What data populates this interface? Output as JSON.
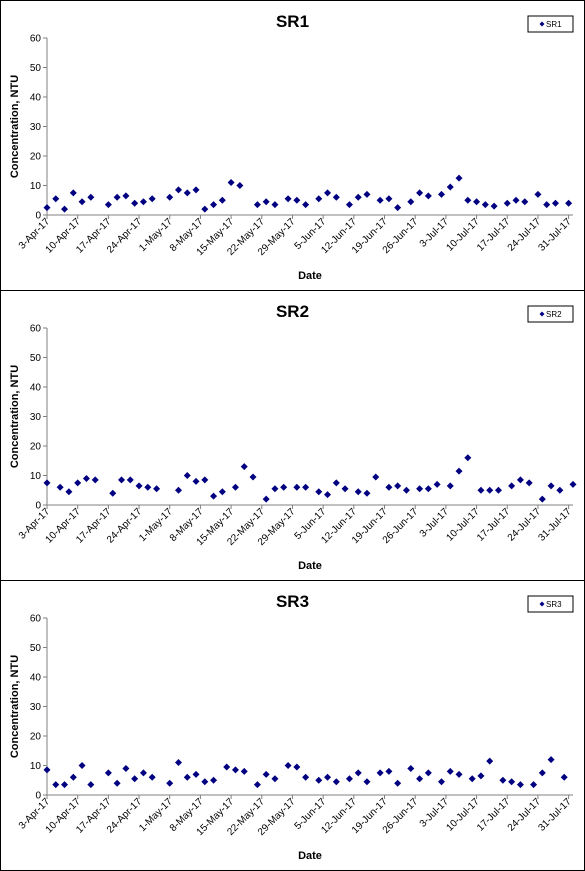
{
  "colors": {
    "marker": "#000080",
    "axis": "#808080"
  },
  "chart_data": [
    {
      "type": "scatter",
      "title": "SR1",
      "xlabel": "Date",
      "ylabel": "Concentration, NTU",
      "ylim": [
        0,
        60
      ],
      "yticks": [
        "0",
        "10",
        "20",
        "30",
        "40",
        "50",
        "60"
      ],
      "xlim": [
        "2017-04-03",
        "2017-08-01"
      ],
      "xticks": [
        "3-Apr-17",
        "10-Apr-17",
        "17-Apr-17",
        "24-Apr-17",
        "1-May-17",
        "8-May-17",
        "15-May-17",
        "22-May-17",
        "29-May-17",
        "5-Jun-17",
        "12-Jun-17",
        "19-Jun-17",
        "26-Jun-17",
        "3-Jul-17",
        "10-Jul-17",
        "17-Jul-17",
        "24-Jul-17",
        "31-Jul-17"
      ],
      "legend": "top-right",
      "grid": false,
      "series": [
        {
          "name": "SR1",
          "x": [
            "2017-04-03",
            "2017-04-05",
            "2017-04-07",
            "2017-04-09",
            "2017-04-11",
            "2017-04-13",
            "2017-04-17",
            "2017-04-19",
            "2017-04-21",
            "2017-04-23",
            "2017-04-25",
            "2017-04-27",
            "2017-05-01",
            "2017-05-03",
            "2017-05-05",
            "2017-05-07",
            "2017-05-09",
            "2017-05-11",
            "2017-05-13",
            "2017-05-15",
            "2017-05-17",
            "2017-05-21",
            "2017-05-23",
            "2017-05-25",
            "2017-05-28",
            "2017-05-30",
            "2017-06-01",
            "2017-06-04",
            "2017-06-06",
            "2017-06-08",
            "2017-06-11",
            "2017-06-13",
            "2017-06-15",
            "2017-06-18",
            "2017-06-20",
            "2017-06-22",
            "2017-06-25",
            "2017-06-27",
            "2017-06-29",
            "2017-07-02",
            "2017-07-04",
            "2017-07-06",
            "2017-07-08",
            "2017-07-10",
            "2017-07-12",
            "2017-07-14",
            "2017-07-17",
            "2017-07-19",
            "2017-07-21",
            "2017-07-24",
            "2017-07-26",
            "2017-07-28",
            "2017-07-31"
          ],
          "y": [
            2.5,
            5.5,
            2,
            7.5,
            4.5,
            6,
            3.5,
            6,
            6.5,
            4,
            4.5,
            5.5,
            6,
            8.5,
            7.5,
            8.5,
            2,
            3.5,
            5,
            11,
            10,
            3.5,
            4.5,
            3.5,
            5.5,
            5,
            3.5,
            5.5,
            7.5,
            6,
            3.5,
            6,
            7,
            5,
            5.5,
            2.5,
            4.5,
            7.5,
            6.5,
            7,
            9.5,
            12.5,
            5,
            4.5,
            3.5,
            3,
            4,
            5,
            4.5,
            7,
            3.5,
            4,
            4
          ]
        }
      ]
    },
    {
      "type": "scatter",
      "title": "SR2",
      "xlabel": "Date",
      "ylabel": "Concentration, NTU",
      "ylim": [
        0,
        60
      ],
      "yticks": [
        "0",
        "10",
        "20",
        "30",
        "40",
        "50",
        "60"
      ],
      "xlim": [
        "2017-04-03",
        "2017-08-01"
      ],
      "xticks": [
        "3-Apr-17",
        "10-Apr-17",
        "17-Apr-17",
        "24-Apr-17",
        "1-May-17",
        "8-May-17",
        "15-May-17",
        "22-May-17",
        "29-May-17",
        "5-Jun-17",
        "12-Jun-17",
        "19-Jun-17",
        "26-Jun-17",
        "3-Jul-17",
        "10-Jul-17",
        "17-Jul-17",
        "24-Jul-17",
        "31-Jul-17"
      ],
      "legend": "top-right",
      "grid": false,
      "series": [
        {
          "name": "SR2",
          "x": [
            "2017-04-03",
            "2017-04-06",
            "2017-04-08",
            "2017-04-10",
            "2017-04-12",
            "2017-04-14",
            "2017-04-18",
            "2017-04-20",
            "2017-04-22",
            "2017-04-24",
            "2017-04-26",
            "2017-04-28",
            "2017-05-03",
            "2017-05-05",
            "2017-05-07",
            "2017-05-09",
            "2017-05-11",
            "2017-05-13",
            "2017-05-16",
            "2017-05-18",
            "2017-05-20",
            "2017-05-23",
            "2017-05-25",
            "2017-05-27",
            "2017-05-30",
            "2017-06-01",
            "2017-06-04",
            "2017-06-06",
            "2017-06-08",
            "2017-06-10",
            "2017-06-13",
            "2017-06-15",
            "2017-06-17",
            "2017-06-20",
            "2017-06-22",
            "2017-06-24",
            "2017-06-27",
            "2017-06-29",
            "2017-07-01",
            "2017-07-04",
            "2017-07-06",
            "2017-07-08",
            "2017-07-11",
            "2017-07-13",
            "2017-07-15",
            "2017-07-18",
            "2017-07-20",
            "2017-07-22",
            "2017-07-25",
            "2017-07-27",
            "2017-07-29",
            "2017-08-01"
          ],
          "y": [
            7.5,
            6,
            4.5,
            7.5,
            9,
            8.5,
            4,
            8.5,
            8.5,
            6.5,
            6,
            5.5,
            5,
            10,
            8,
            8.5,
            3,
            4.5,
            6,
            13,
            9.5,
            2,
            5.5,
            6,
            6,
            6,
            4.5,
            3.5,
            7.5,
            5.5,
            4.5,
            4,
            9.5,
            6,
            6.5,
            5,
            5.5,
            5.5,
            7,
            6.5,
            11.5,
            16,
            5,
            5,
            5,
            6.5,
            8.5,
            7.5,
            2,
            6.5,
            5,
            7
          ]
        }
      ]
    },
    {
      "type": "scatter",
      "title": "SR3",
      "xlabel": "Date",
      "ylabel": "Concentration, NTU",
      "ylim": [
        0,
        60
      ],
      "yticks": [
        "0",
        "10",
        "20",
        "30",
        "40",
        "50",
        "60"
      ],
      "xlim": [
        "2017-04-03",
        "2017-08-01"
      ],
      "xticks": [
        "3-Apr-17",
        "10-Apr-17",
        "17-Apr-17",
        "24-Apr-17",
        "1-May-17",
        "8-May-17",
        "15-May-17",
        "22-May-17",
        "29-May-17",
        "5-Jun-17",
        "12-Jun-17",
        "19-Jun-17",
        "26-Jun-17",
        "3-Jul-17",
        "10-Jul-17",
        "17-Jul-17",
        "24-Jul-17",
        "31-Jul-17"
      ],
      "legend": "top-right",
      "grid": false,
      "series": [
        {
          "name": "SR3",
          "x": [
            "2017-04-03",
            "2017-04-05",
            "2017-04-07",
            "2017-04-09",
            "2017-04-11",
            "2017-04-13",
            "2017-04-17",
            "2017-04-19",
            "2017-04-21",
            "2017-04-23",
            "2017-04-25",
            "2017-04-27",
            "2017-05-01",
            "2017-05-03",
            "2017-05-05",
            "2017-05-07",
            "2017-05-09",
            "2017-05-11",
            "2017-05-14",
            "2017-05-16",
            "2017-05-18",
            "2017-05-21",
            "2017-05-23",
            "2017-05-25",
            "2017-05-28",
            "2017-05-30",
            "2017-06-01",
            "2017-06-04",
            "2017-06-06",
            "2017-06-08",
            "2017-06-11",
            "2017-06-13",
            "2017-06-15",
            "2017-06-18",
            "2017-06-20",
            "2017-06-22",
            "2017-06-25",
            "2017-06-27",
            "2017-06-29",
            "2017-07-02",
            "2017-07-04",
            "2017-07-06",
            "2017-07-09",
            "2017-07-11",
            "2017-07-13",
            "2017-07-16",
            "2017-07-18",
            "2017-07-20",
            "2017-07-23",
            "2017-07-25",
            "2017-07-27",
            "2017-07-30"
          ],
          "y": [
            8.5,
            3.5,
            3.5,
            6,
            10,
            3.5,
            7.5,
            4,
            9,
            5.5,
            7.5,
            6,
            4,
            11,
            6,
            7,
            4.5,
            5,
            9.5,
            8.5,
            8,
            3.5,
            7,
            5.5,
            10,
            9.5,
            6,
            5,
            6,
            4.5,
            5.5,
            7.5,
            4.5,
            7.5,
            8,
            4,
            9,
            5.5,
            7.5,
            4.5,
            8,
            7,
            5.5,
            6.5,
            11.5,
            5,
            4.5,
            3.5,
            3.5,
            7.5,
            12,
            6
          ]
        }
      ]
    }
  ]
}
